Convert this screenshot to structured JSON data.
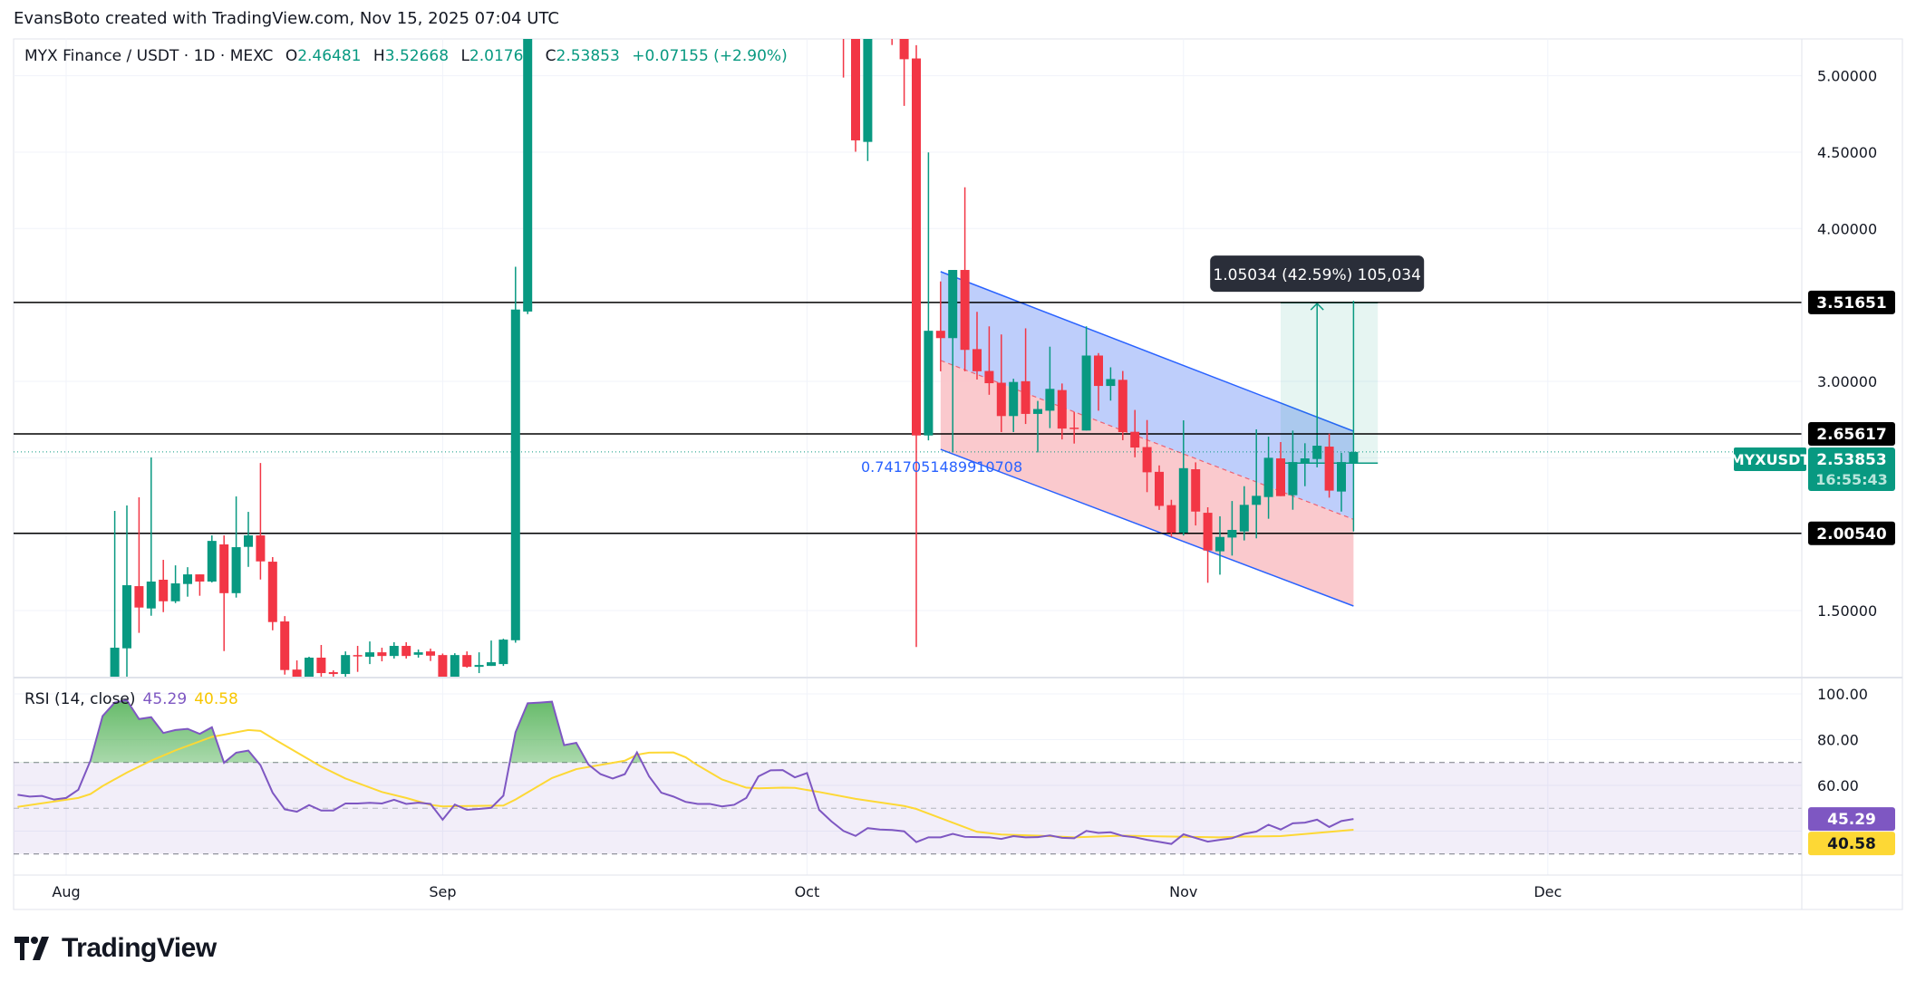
{
  "header": {
    "attribution": "EvansBoto created with TradingView.com, Nov 15, 2025 07:04 UTC"
  },
  "legend": {
    "symbol": "MYX Finance / USDT · 1D · MEXC",
    "open_label": "O",
    "open": "2.46481",
    "high_label": "H",
    "high": "3.52668",
    "low_label": "L",
    "low": "2.01761",
    "close_label": "C",
    "close": "2.53853",
    "change": "+0.07155 (+2.90%)"
  },
  "colors": {
    "up": "#089981",
    "down": "#F23645",
    "rsi": "#7E57C2",
    "rsi_ma": "#FDD835",
    "channel_line": "#2962FF",
    "channel_upper_fill": "#b7c9fb",
    "channel_lower_fill": "#f9c3c8",
    "level_line": "#000000"
  },
  "price_axis": {
    "ticks": [
      "5.00000",
      "4.50000",
      "4.00000",
      "3.00000",
      "1.50000"
    ]
  },
  "time_axis": {
    "labels": [
      {
        "text": "Aug",
        "date": "2025-08-01"
      },
      {
        "text": "Sep",
        "date": "2025-09-01"
      },
      {
        "text": "Oct",
        "date": "2025-10-01"
      },
      {
        "text": "Nov",
        "date": "2025-11-01"
      },
      {
        "text": "Dec",
        "date": "2025-12-01"
      }
    ]
  },
  "levels": [
    {
      "price": 3.51651,
      "label": "3.51651"
    },
    {
      "price": 2.65617,
      "label": "2.65617"
    },
    {
      "price": 2.0054,
      "label": "2.00540"
    }
  ],
  "last_price": {
    "symbol": "MYXUSDT",
    "price": 2.53853,
    "label": "2.53853",
    "countdown": "16:55:43"
  },
  "channel": {
    "start_date": "2025-10-12",
    "end_date": "2025-11-15",
    "upper": [
      3.718,
      2.674
    ],
    "middle": [
      3.137,
      2.097
    ],
    "lower": [
      2.555,
      1.53
    ],
    "label": "0.7417051489910708"
  },
  "price_range": {
    "start_date": "2025-11-09",
    "end_date": "2025-11-17",
    "arrow_date": "2025-11-12",
    "from_price": 2.46481,
    "to_price": 3.51515,
    "label": "1.05034 (42.59%) 105,034"
  },
  "chart_data": {
    "type": "candlestick",
    "symbol": "MYX Finance / USDT",
    "interval": "1D",
    "ylim": [
      1.062,
      5.24
    ],
    "candles_fields": [
      "date",
      "open",
      "high",
      "low",
      "close"
    ],
    "candles": [
      [
        "2025-08-05",
        0.98,
        2.152,
        0.95,
        1.257
      ],
      [
        "2025-08-06",
        1.253,
        2.188,
        0.98,
        1.666
      ],
      [
        "2025-08-07",
        1.66,
        2.241,
        1.354,
        1.52
      ],
      [
        "2025-08-08",
        1.514,
        2.502,
        1.466,
        1.69
      ],
      [
        "2025-08-09",
        1.702,
        1.832,
        1.49,
        1.561
      ],
      [
        "2025-08-10",
        1.561,
        1.796,
        1.549,
        1.678
      ],
      [
        "2025-08-11",
        1.674,
        1.784,
        1.591,
        1.737
      ],
      [
        "2025-08-12",
        1.737,
        1.737,
        1.597,
        1.69
      ],
      [
        "2025-08-13",
        1.69,
        1.992,
        1.684,
        1.956
      ],
      [
        "2025-08-14",
        1.933,
        1.992,
        1.235,
        1.614
      ],
      [
        "2025-08-15",
        1.614,
        2.247,
        1.585,
        1.915
      ],
      [
        "2025-08-16",
        1.917,
        2.146,
        1.786,
        1.992
      ],
      [
        "2025-08-17",
        1.992,
        2.466,
        1.703,
        1.822
      ],
      [
        "2025-08-18",
        1.82,
        1.85,
        1.371,
        1.425
      ],
      [
        "2025-08-19",
        1.429,
        1.464,
        1.081,
        1.111
      ],
      [
        "2025-08-20",
        1.114,
        1.174,
        1.02,
        1.04
      ],
      [
        "2025-08-21",
        1.04,
        1.198,
        1.02,
        1.192
      ],
      [
        "2025-08-22",
        1.192,
        1.275,
        1.057,
        1.091
      ],
      [
        "2025-08-23",
        1.097,
        1.109,
        1.057,
        1.085
      ],
      [
        "2025-08-24",
        1.085,
        1.233,
        1.057,
        1.209
      ],
      [
        "2025-08-25",
        1.209,
        1.269,
        1.099,
        1.205
      ],
      [
        "2025-08-26",
        1.198,
        1.298,
        1.15,
        1.227
      ],
      [
        "2025-08-27",
        1.227,
        1.257,
        1.168,
        1.203
      ],
      [
        "2025-08-28",
        1.203,
        1.293,
        1.186,
        1.269
      ],
      [
        "2025-08-29",
        1.269,
        1.293,
        1.186,
        1.203
      ],
      [
        "2025-08-30",
        1.211,
        1.245,
        1.192,
        1.227
      ],
      [
        "2025-08-31",
        1.233,
        1.251,
        1.17,
        1.205
      ],
      [
        "2025-09-01",
        1.209,
        1.219,
        1.02,
        1.04
      ],
      [
        "2025-09-02",
        1.04,
        1.221,
        1.02,
        1.209
      ],
      [
        "2025-09-03",
        1.209,
        1.233,
        1.126,
        1.132
      ],
      [
        "2025-09-04",
        1.132,
        1.227,
        1.091,
        1.144
      ],
      [
        "2025-09-05",
        1.138,
        1.304,
        1.138,
        1.162
      ],
      [
        "2025-09-06",
        1.15,
        1.316,
        1.138,
        1.31
      ],
      [
        "2025-09-07",
        1.306,
        3.75,
        1.29,
        3.47
      ],
      [
        "2025-09-08",
        3.457,
        6.2,
        3.44,
        6.0
      ],
      [
        "2025-10-04",
        5.8,
        6.0,
        4.988,
        5.5
      ],
      [
        "2025-10-05",
        5.6,
        5.8,
        4.503,
        4.577
      ],
      [
        "2025-10-06",
        4.567,
        5.9,
        4.442,
        5.6
      ],
      [
        "2025-10-08",
        5.6,
        5.8,
        5.201,
        5.4
      ],
      [
        "2025-10-09",
        5.5,
        5.7,
        4.803,
        5.108
      ],
      [
        "2025-10-10",
        5.113,
        5.2,
        1.262,
        2.646
      ],
      [
        "2025-10-11",
        2.646,
        4.498,
        2.614,
        3.331
      ],
      [
        "2025-10-12",
        3.331,
        3.654,
        3.066,
        3.283
      ],
      [
        "2025-10-13",
        3.283,
        3.729,
        2.535,
        3.729
      ],
      [
        "2025-10-14",
        3.729,
        4.27,
        3.066,
        3.206
      ],
      [
        "2025-10-15",
        3.211,
        3.455,
        3.012,
        3.066
      ],
      [
        "2025-10-16",
        3.068,
        3.36,
        2.912,
        2.988
      ],
      [
        "2025-10-17",
        2.991,
        3.307,
        2.668,
        2.773
      ],
      [
        "2025-10-18",
        2.773,
        3.017,
        2.668,
        2.996
      ],
      [
        "2025-10-19",
        3.001,
        3.347,
        2.721,
        2.787
      ],
      [
        "2025-10-20",
        2.787,
        2.872,
        2.535,
        2.819
      ],
      [
        "2025-10-21",
        2.808,
        3.227,
        2.694,
        2.951
      ],
      [
        "2025-10-22",
        2.943,
        2.986,
        2.62,
        2.691
      ],
      [
        "2025-10-23",
        2.697,
        2.8,
        2.593,
        2.691
      ],
      [
        "2025-10-24",
        2.678,
        3.36,
        2.678,
        3.169
      ],
      [
        "2025-10-25",
        3.169,
        3.185,
        2.808,
        2.97
      ],
      [
        "2025-10-26",
        2.97,
        3.092,
        2.874,
        3.015
      ],
      [
        "2025-10-27",
        3.01,
        3.068,
        2.615,
        2.668
      ],
      [
        "2025-10-28",
        2.67,
        2.813,
        2.503,
        2.567
      ],
      [
        "2025-10-29",
        2.57,
        2.747,
        2.275,
        2.405
      ],
      [
        "2025-10-30",
        2.408,
        2.45,
        2.159,
        2.185
      ],
      [
        "2025-10-31",
        2.19,
        2.225,
        1.983,
        2.01
      ],
      [
        "2025-11-01",
        2.01,
        2.745,
        1.991,
        2.432
      ],
      [
        "2025-11-02",
        2.425,
        2.47,
        2.057,
        2.148
      ],
      [
        "2025-11-03",
        2.14,
        2.176,
        1.682,
        1.893
      ],
      [
        "2025-11-04",
        1.888,
        2.117,
        1.735,
        1.982
      ],
      [
        "2025-11-05",
        1.978,
        2.217,
        1.86,
        2.028
      ],
      [
        "2025-11-06",
        2.018,
        2.314,
        1.959,
        2.192
      ],
      [
        "2025-11-07",
        2.192,
        2.686,
        1.973,
        2.251
      ],
      [
        "2025-11-08",
        2.243,
        2.638,
        2.101,
        2.5
      ],
      [
        "2025-11-09",
        2.496,
        2.603,
        2.249,
        2.249
      ],
      [
        "2025-11-10",
        2.255,
        2.678,
        2.16,
        2.472
      ],
      [
        "2025-11-11",
        2.468,
        2.595,
        2.314,
        2.496
      ],
      [
        "2025-11-12",
        2.492,
        2.638,
        2.437,
        2.579
      ],
      [
        "2025-11-13",
        2.573,
        2.658,
        2.239,
        2.285
      ],
      [
        "2025-11-14",
        2.279,
        2.532,
        2.148,
        2.472
      ],
      [
        "2025-11-15",
        2.46481,
        3.52668,
        2.01761,
        2.53853
      ]
    ],
    "rsi": {
      "label": "RSI (14, close)",
      "value_label": "45.29",
      "ma_label": "40.58",
      "ticks": [
        "100.00",
        "80.00",
        "60.00"
      ],
      "bands": [
        70,
        50,
        30
      ],
      "start_date": "2025-07-28",
      "values": [
        55.9,
        55.1,
        55.4,
        53.8,
        54.5,
        58.1,
        70.8,
        90.3,
        96.2,
        97.2,
        89.0,
        89.8,
        82.9,
        84.2,
        84.7,
        82.5,
        85.4,
        69.9,
        74.3,
        75.2,
        68.8,
        56.8,
        49.5,
        48.5,
        51.4,
        49.0,
        49.0,
        52.1,
        52.1,
        52.4,
        52.1,
        53.7,
        51.9,
        52.4,
        51.9,
        45.0,
        51.6,
        49.3,
        49.7,
        50.2,
        55.5,
        83.2,
        95.9,
        96.2,
        96.6,
        77.6,
        78.6,
        69.1,
        64.9,
        63.0,
        64.9,
        74.4,
        63.9,
        56.8,
        55.1,
        52.8,
        51.9,
        51.9,
        50.8,
        51.5,
        54.5,
        63.9,
        66.6,
        66.7,
        63.5,
        65.4,
        49.3,
        44.3,
        40.1,
        37.9,
        41.3,
        40.7,
        40.5,
        39.9,
        35.2,
        37.3,
        37.3,
        38.8,
        37.5,
        37.4,
        37.3,
        36.6,
        37.8,
        37.3,
        37.4,
        38.1,
        37.1,
        36.9,
        40.1,
        39.2,
        39.5,
        37.9,
        37.3,
        36.2,
        35.3,
        34.4,
        38.6,
        37.0,
        35.4,
        36.2,
        36.9,
        38.8,
        39.8,
        42.8,
        40.7,
        43.4,
        43.7,
        45.0,
        41.8,
        44.4,
        45.29
      ],
      "ma_points": [
        [
          "2025-07-28",
          50.6
        ],
        [
          "2025-08-02",
          54.5
        ],
        [
          "2025-08-03",
          56.2
        ],
        [
          "2025-08-04",
          59.7
        ],
        [
          "2025-08-06",
          65.6
        ],
        [
          "2025-08-08",
          70.8
        ],
        [
          "2025-08-10",
          75.3
        ],
        [
          "2025-08-13",
          81.2
        ],
        [
          "2025-08-16",
          84.2
        ],
        [
          "2025-08-17",
          83.8
        ],
        [
          "2025-08-18",
          80.6
        ],
        [
          "2025-08-20",
          74.4
        ],
        [
          "2025-08-22",
          68.2
        ],
        [
          "2025-08-24",
          63.0
        ],
        [
          "2025-08-27",
          57.1
        ],
        [
          "2025-08-29",
          54.5
        ],
        [
          "2025-08-31",
          51.5
        ],
        [
          "2025-09-01",
          50.8
        ],
        [
          "2025-09-06",
          51.2
        ],
        [
          "2025-09-07",
          53.8
        ],
        [
          "2025-09-10",
          63.2
        ],
        [
          "2025-09-12",
          67.1
        ],
        [
          "2025-09-16",
          70.8
        ],
        [
          "2025-09-17",
          73.4
        ],
        [
          "2025-09-18",
          74.3
        ],
        [
          "2025-09-20",
          74.4
        ],
        [
          "2025-09-21",
          72.3
        ],
        [
          "2025-09-22",
          68.8
        ],
        [
          "2025-09-24",
          62.6
        ],
        [
          "2025-09-26",
          59.0
        ],
        [
          "2025-09-27",
          58.7
        ],
        [
          "2025-09-29",
          59.0
        ],
        [
          "2025-09-30",
          58.9
        ],
        [
          "2025-10-02",
          57.1
        ],
        [
          "2025-10-05",
          54.1
        ],
        [
          "2025-10-09",
          51.0
        ],
        [
          "2025-10-10",
          49.7
        ],
        [
          "2025-10-13",
          43.7
        ],
        [
          "2025-10-15",
          39.7
        ],
        [
          "2025-10-17",
          38.5
        ],
        [
          "2025-10-20",
          38.0
        ],
        [
          "2025-10-23",
          37.3
        ],
        [
          "2025-10-27",
          38.0
        ],
        [
          "2025-10-31",
          37.6
        ],
        [
          "2025-11-04",
          37.3
        ],
        [
          "2025-11-06",
          37.6
        ],
        [
          "2025-11-09",
          37.8
        ],
        [
          "2025-11-12",
          39.2
        ],
        [
          "2025-11-15",
          40.58
        ]
      ]
    }
  },
  "logo": {
    "text": "TradingView"
  }
}
